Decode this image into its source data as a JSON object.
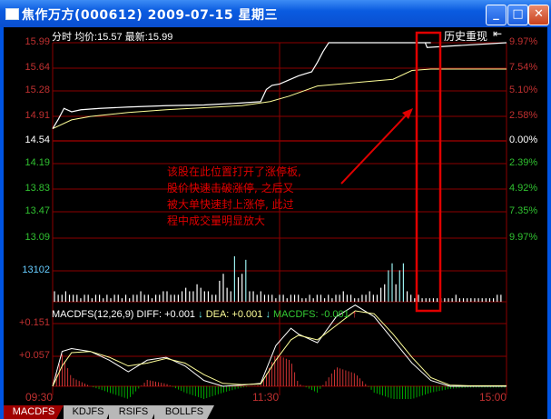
{
  "window": {
    "title": "焦作万方(000612) 2009-07-15 星期三",
    "buttons": [
      "minimize",
      "maximize",
      "close"
    ]
  },
  "header": {
    "mode": "分时",
    "avg_label": "均价:",
    "avg_value": "15.57",
    "last_label": "最新:",
    "last_value": "15.99",
    "history_replay": "历史重现"
  },
  "price_axis": {
    "left": [
      "15.99",
      "15.64",
      "15.28",
      "14.91",
      "14.54",
      "14.19",
      "13.83",
      "13.47",
      "13.09"
    ],
    "right": [
      "9.97%",
      "7.54%",
      "5.10%",
      "2.58%",
      "0.00%",
      "2.39%",
      "4.92%",
      "7.35%",
      "9.97%"
    ]
  },
  "volume_axis": {
    "max_label": "13102"
  },
  "macd": {
    "title": "MACDFS(12,26,9)",
    "diff_label": "DIFF: +0.001",
    "dea_label": "DEA: +0.001",
    "macd_label": "MACDFS: -0.001",
    "axis": [
      "+0.151",
      "+0.057"
    ]
  },
  "time_axis": [
    "09:30",
    "11:30",
    "15:00"
  ],
  "annotation": {
    "lines": [
      "该股在此位置打开了涨停板,",
      "股价快速击破涨停, 之后又",
      "被大单快速封上涨停, 此过",
      "程中成交量明显放大"
    ],
    "color": "#e00000"
  },
  "tabs": [
    "MACDFS",
    "KDJFS",
    "RSIFS",
    "BOLLFS"
  ],
  "colors": {
    "up": "#ff4040",
    "down": "#00d000",
    "grid": "#8b0000",
    "price_line": "#ffffff",
    "avg_line": "#ffff99"
  },
  "chart_data": {
    "type": "line",
    "prev_close": 14.54,
    "ylim": [
      13.09,
      15.99
    ],
    "price": {
      "minutes": [
        0,
        3,
        6,
        10,
        15,
        25,
        40,
        60,
        80,
        100,
        110,
        113,
        116,
        120,
        125,
        130,
        137,
        140,
        143,
        146,
        150,
        180,
        200,
        197,
        198,
        240
      ],
      "values": [
        14.72,
        14.86,
        15.02,
        14.97,
        15.0,
        15.02,
        15.04,
        15.06,
        15.07,
        15.1,
        15.12,
        15.3,
        15.36,
        15.38,
        15.44,
        15.5,
        15.56,
        15.7,
        15.86,
        15.99,
        15.99,
        15.99,
        15.99,
        15.99,
        15.92,
        15.99
      ]
    },
    "average": {
      "minutes": [
        0,
        10,
        20,
        40,
        60,
        80,
        100,
        115,
        125,
        140,
        160,
        180,
        190,
        200,
        240
      ],
      "values": [
        14.72,
        14.85,
        14.9,
        14.96,
        15.0,
        15.03,
        15.06,
        15.12,
        15.2,
        15.35,
        15.4,
        15.45,
        15.58,
        15.6,
        15.6
      ]
    },
    "volume": [
      3,
      2,
      2,
      3,
      2,
      2,
      2,
      1,
      2,
      2,
      1,
      2,
      2,
      1,
      2,
      1,
      2,
      2,
      1,
      2,
      1,
      2,
      2,
      3,
      2,
      2,
      1,
      2,
      2,
      3,
      3,
      2,
      2,
      2,
      3,
      4,
      3,
      3,
      5,
      4,
      3,
      3,
      2,
      2,
      6,
      8,
      4,
      3,
      13,
      7,
      8,
      12,
      3,
      3,
      2,
      3,
      2,
      2,
      2,
      1,
      2,
      2,
      1,
      2,
      2,
      2,
      1,
      1,
      2,
      1,
      2,
      2,
      1,
      2,
      1,
      2,
      2,
      3,
      2,
      2,
      1,
      1,
      2,
      2,
      3,
      2,
      2,
      4,
      5,
      9,
      11,
      5,
      9,
      11,
      3,
      2,
      1,
      2,
      1,
      1,
      1,
      1,
      1,
      1,
      1,
      1,
      1,
      2,
      1,
      1,
      1,
      1,
      1,
      1,
      1,
      1,
      1,
      1,
      2,
      2
    ],
    "diff": {
      "minutes": [
        0,
        5,
        10,
        20,
        30,
        40,
        50,
        60,
        70,
        80,
        90,
        100,
        110,
        118,
        126,
        130,
        140,
        150,
        160,
        170,
        180,
        190,
        200,
        210,
        220,
        240
      ],
      "values": [
        0.0,
        0.06,
        0.065,
        0.06,
        0.045,
        0.025,
        0.045,
        0.05,
        0.035,
        0.01,
        0.0,
        0.002,
        0.005,
        0.07,
        0.1,
        0.09,
        0.075,
        0.12,
        0.14,
        0.12,
        0.08,
        0.04,
        0.01,
        0.0,
        0.0,
        0.0
      ]
    },
    "dea": {
      "minutes": [
        0,
        5,
        10,
        20,
        30,
        40,
        50,
        60,
        70,
        80,
        90,
        100,
        110,
        118,
        126,
        130,
        140,
        150,
        160,
        170,
        180,
        190,
        200,
        210,
        220,
        240
      ],
      "values": [
        0.0,
        0.035,
        0.058,
        0.06,
        0.05,
        0.035,
        0.04,
        0.048,
        0.04,
        0.02,
        0.005,
        0.003,
        0.004,
        0.045,
        0.08,
        0.088,
        0.08,
        0.105,
        0.13,
        0.125,
        0.09,
        0.05,
        0.015,
        0.002,
        0.001,
        0.001
      ]
    }
  }
}
